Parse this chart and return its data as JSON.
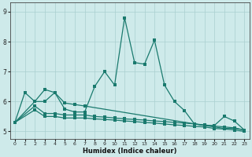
{
  "xlabel": "Humidex (Indice chaleur)",
  "bg_color": "#ceeaea",
  "line_color": "#1a7a6e",
  "grid_color": "#aacfcf",
  "xlim": [
    -0.5,
    23.5
  ],
  "ylim": [
    4.75,
    9.3
  ],
  "yticks": [
    5,
    6,
    7,
    8,
    9
  ],
  "xticks": [
    0,
    1,
    2,
    3,
    4,
    5,
    6,
    7,
    8,
    9,
    10,
    11,
    12,
    13,
    14,
    15,
    16,
    17,
    18,
    19,
    20,
    21,
    22,
    23
  ],
  "line1_x": [
    0,
    1,
    2,
    3,
    4,
    5,
    6,
    7,
    8,
    9,
    10,
    11,
    12,
    13,
    14,
    15,
    16,
    17,
    18,
    19,
    20,
    21,
    22,
    23
  ],
  "line1_y": [
    5.3,
    6.3,
    6.0,
    6.4,
    6.3,
    5.75,
    5.65,
    5.65,
    6.5,
    7.0,
    6.55,
    8.8,
    7.3,
    7.25,
    8.05,
    6.55,
    6.0,
    5.7,
    5.25,
    5.2,
    5.2,
    5.5,
    5.35,
    5.05
  ],
  "line2_x": [
    0,
    2,
    3,
    4,
    5,
    6,
    7,
    19,
    20,
    21,
    22,
    23
  ],
  "line2_y": [
    5.3,
    6.0,
    6.0,
    6.3,
    5.95,
    5.9,
    5.85,
    5.2,
    5.15,
    5.1,
    5.1,
    5.05
  ],
  "line3_x": [
    0,
    2,
    3,
    4,
    5,
    6,
    7,
    8,
    9,
    10,
    11,
    12,
    13,
    14,
    15,
    16,
    17,
    18,
    19,
    20,
    21,
    22,
    23
  ],
  "line3_y": [
    5.3,
    5.85,
    5.6,
    5.6,
    5.55,
    5.55,
    5.55,
    5.5,
    5.48,
    5.45,
    5.42,
    5.4,
    5.38,
    5.35,
    5.33,
    5.3,
    5.28,
    5.25,
    5.22,
    5.18,
    5.15,
    5.12,
    5.05
  ],
  "line4_x": [
    0,
    2,
    3,
    4,
    5,
    6,
    7,
    8,
    9,
    10,
    11,
    12,
    13,
    14,
    15,
    16,
    17,
    18,
    19,
    20,
    21,
    22,
    23
  ],
  "line4_y": [
    5.3,
    5.72,
    5.5,
    5.5,
    5.45,
    5.45,
    5.45,
    5.42,
    5.4,
    5.38,
    5.35,
    5.33,
    5.3,
    5.28,
    5.25,
    5.22,
    5.2,
    5.17,
    5.15,
    5.1,
    5.08,
    5.05,
    5.0
  ]
}
